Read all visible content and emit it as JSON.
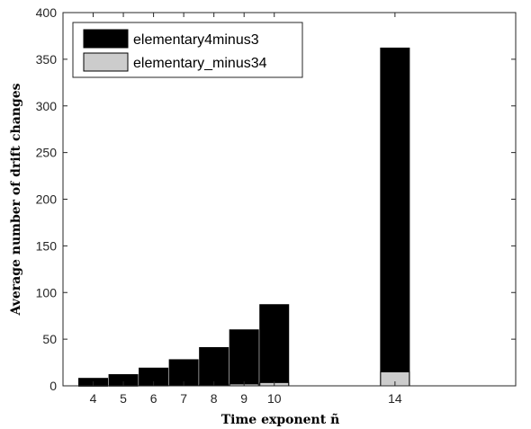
{
  "chart_data": {
    "type": "bar",
    "stacked": true,
    "xlabel": "Time exponent ñ",
    "ylabel": "Average number of drift changes",
    "xlim": [
      3,
      18
    ],
    "ylim": [
      0,
      400
    ],
    "x": [
      4,
      5,
      6,
      7,
      8,
      9,
      10,
      14
    ],
    "x_ticks": [
      "4",
      "5",
      "6",
      "7",
      "8",
      "9",
      "10",
      "14"
    ],
    "y_ticks": [
      "0",
      "50",
      "100",
      "150",
      "200",
      "250",
      "300",
      "350",
      "400"
    ],
    "grid": false,
    "legend_position": "top-left",
    "series": [
      {
        "name": "elementary4minus3",
        "color": "#000000",
        "values": [
          8,
          12,
          19,
          28,
          41,
          60,
          87,
          362
        ]
      },
      {
        "name": "elementary_minus34",
        "color": "#cccccc",
        "values": [
          0.1,
          0.2,
          0.4,
          0.6,
          1.0,
          2.0,
          3.5,
          15
        ]
      }
    ]
  }
}
